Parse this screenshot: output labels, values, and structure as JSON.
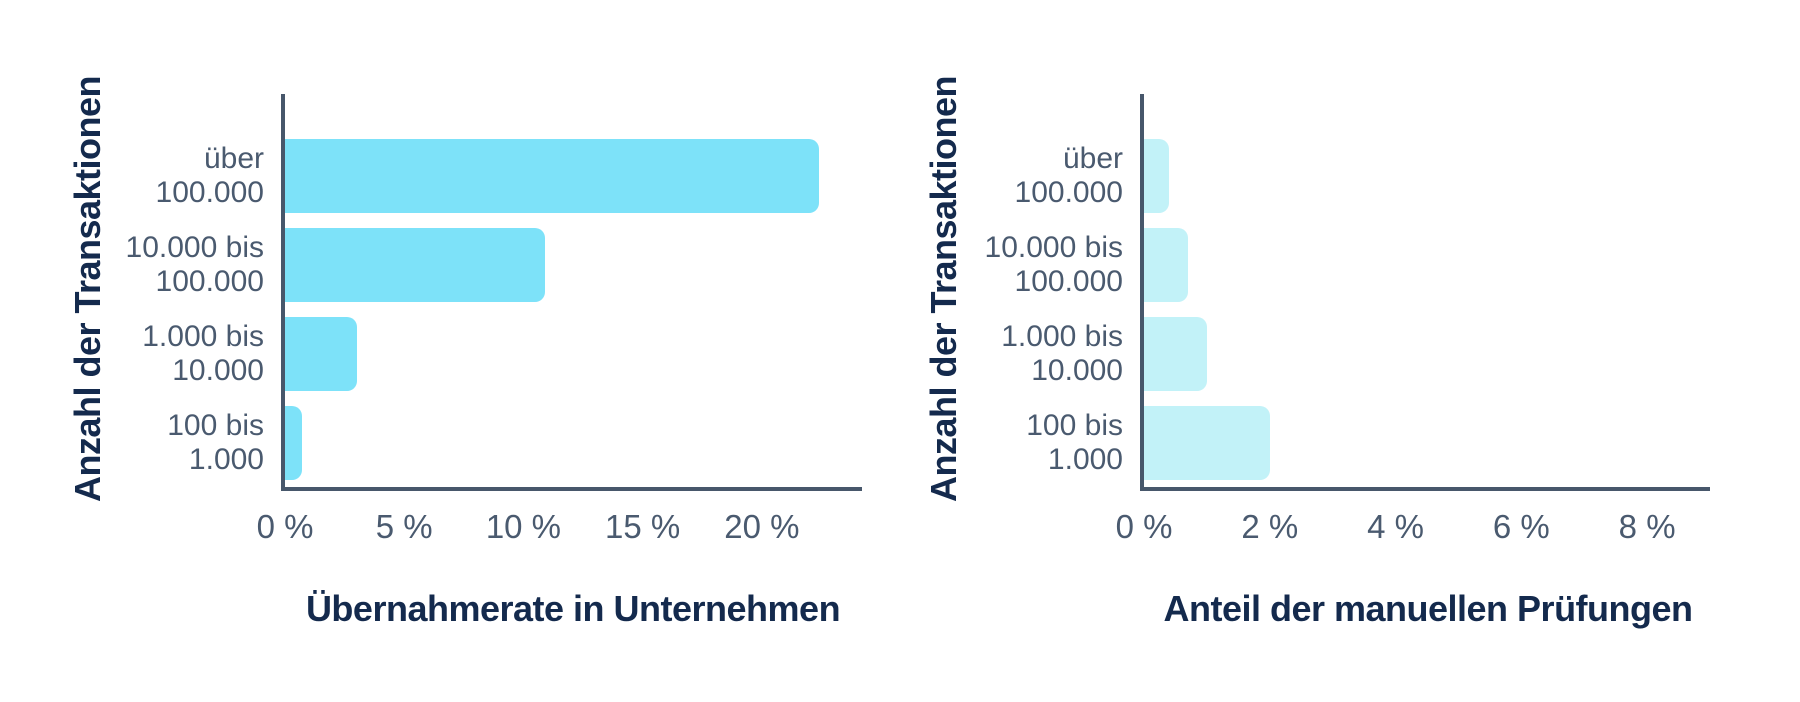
{
  "chart_data": [
    {
      "type": "bar",
      "orientation": "horizontal",
      "ylabel": "Anzahl der Transaktionen",
      "xlabel": "Übernahmerate in Unternehmen",
      "categories": [
        [
          "über",
          "100.000"
        ],
        [
          "10.000 bis",
          "100.000"
        ],
        [
          "1.000 bis",
          "10.000"
        ],
        [
          "100 bis",
          "1.000"
        ]
      ],
      "values": [
        22.4,
        10.9,
        3.0,
        0.7
      ],
      "unit": "%",
      "xlim": [
        0,
        24.2
      ],
      "xticks": [
        0,
        5,
        10,
        15,
        20
      ],
      "xtick_labels": [
        "0 %",
        "5 %",
        "10 %",
        "15 %",
        "20 %"
      ],
      "bar_color": "#7DE2F9",
      "grid": false,
      "legend": false
    },
    {
      "type": "bar",
      "orientation": "horizontal",
      "ylabel": "Anzahl der Transaktionen",
      "xlabel": "Anteil der manuellen Prüfungen",
      "categories": [
        [
          "über",
          "100.000"
        ],
        [
          "10.000 bis",
          "100.000"
        ],
        [
          "1.000 bis",
          "10.000"
        ],
        [
          "100 bis",
          "1.000"
        ]
      ],
      "values": [
        0.4,
        0.7,
        1.0,
        2.0
      ],
      "unit": "%",
      "xlim": [
        0,
        9.0
      ],
      "xticks": [
        0,
        2,
        4,
        6,
        8
      ],
      "xtick_labels": [
        "0 %",
        "2 %",
        "4 %",
        "6 %",
        "8 %"
      ],
      "bar_color": "#C2F2F8",
      "grid": false,
      "legend": false
    }
  ],
  "colors": {
    "background": "#FFFFFF",
    "axis": "#47576B",
    "tick_text": "#4A5A6F",
    "category_text": "#4A5A6F",
    "title_text": "#142A4D",
    "bar_left": "#7DE2F9",
    "bar_right": "#C2F2F8"
  }
}
